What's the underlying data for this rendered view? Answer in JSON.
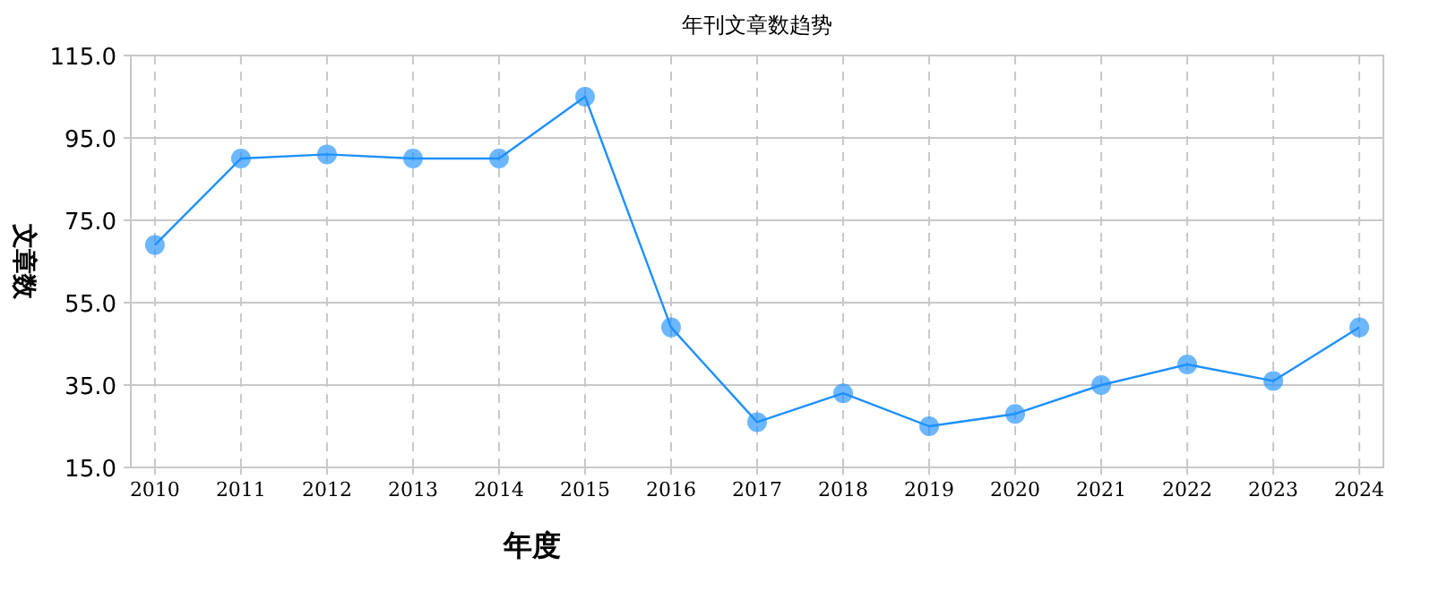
{
  "chart_data": {
    "type": "line",
    "title": "年刊文章数趋势",
    "xlabel": "年度",
    "ylabel": "文章数",
    "categories": [
      "2010",
      "2011",
      "2012",
      "2013",
      "2014",
      "2015",
      "2016",
      "2017",
      "2018",
      "2019",
      "2020",
      "2021",
      "2022",
      "2023",
      "2024"
    ],
    "series": [
      {
        "color": "#1e90ff",
        "values": [
          69,
          90,
          91,
          90,
          90,
          105,
          49,
          26,
          33,
          25,
          28,
          35,
          40,
          36,
          49
        ]
      }
    ],
    "ylim": [
      15,
      115
    ],
    "yticks": [
      {
        "value": 15,
        "label": "15.0"
      },
      {
        "value": 35,
        "label": "35.0"
      },
      {
        "value": 55,
        "label": "55.0"
      },
      {
        "value": 75,
        "label": "75.0"
      },
      {
        "value": 95,
        "label": "95.0"
      },
      {
        "value": 115,
        "label": "115.0"
      }
    ],
    "grid": true,
    "marker": "circle",
    "line_style": "solid"
  }
}
